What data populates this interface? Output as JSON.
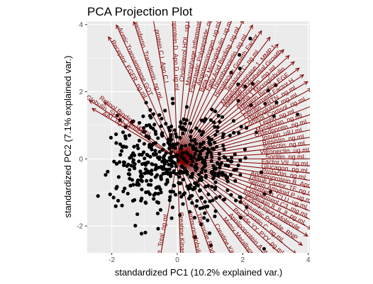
{
  "chart_data": {
    "type": "scatter",
    "title": "PCA Projection Plot",
    "xlabel": "standardized PC1 (10.2% explained var.)",
    "ylabel": "standardized PC2 (7.1% explained var.)",
    "xlim": [
      -2.75,
      4.05
    ],
    "ylim": [
      -2.8,
      4.1
    ],
    "xticks": [
      -2,
      0,
      2,
      4
    ],
    "yticks": [
      -2,
      0,
      2,
      4
    ],
    "grid": true,
    "colors": {
      "panel": "#ebebeb",
      "grid": "#ffffff",
      "points": "#000000",
      "vectors": "#7f0000"
    },
    "point_seed": 7,
    "point_clusters": [
      {
        "cx": -0.55,
        "cy": -0.1,
        "sx": 0.75,
        "sy": 0.75,
        "n": 340
      },
      {
        "cx": 0.95,
        "cy": -0.15,
        "sx": 0.55,
        "sy": 0.65,
        "n": 170
      },
      {
        "cx": 2.2,
        "cy": 1.6,
        "sx": 0.8,
        "sy": 1.1,
        "n": 28
      },
      {
        "cx": 1.0,
        "cy": -1.7,
        "sx": 0.9,
        "sy": 0.5,
        "n": 22
      }
    ],
    "vectors": [
      {
        "label": "Globulin..SHBG..nmol.L",
        "angle": 147,
        "length": 3.2
      },
      {
        "label": "Retinol.Binding..ug.mL",
        "angle": 143,
        "length": 2.8
      },
      {
        "label": "AAT..ug.mL",
        "angle": 150,
        "length": 3.0
      },
      {
        "label": "Receptor..EGFR..ng.mL",
        "angle": 120,
        "length": 4.2
      },
      {
        "label": "Acetic.Transaminase.GOT",
        "angle": 115,
        "length": 4.4
      },
      {
        "label": "Transferrin..Transferrin..ng.mL",
        "angle": 108,
        "length": 4.3
      },
      {
        "label": "protein.C.I..Apo.C.I",
        "angle": 100,
        "length": 4.3
      },
      {
        "label": "Apolipoprotein.D..Apo.D..ug.mL",
        "angle": 92,
        "length": 4.6
      },
      {
        "label": "Cholesterol.HDL..ug.mL",
        "angle": 85,
        "length": 4.6
      },
      {
        "label": "Macrophage.Inflammatory",
        "angle": 80,
        "length": 4.6
      },
      {
        "label": "Pancreatic.Polypeptide..ng.mL",
        "angle": 76,
        "length": 4.6
      },
      {
        "label": "Angiotensinogen..ug.mL",
        "angle": 72,
        "length": 4.6
      },
      {
        "label": "Beta.2.Microglobulin..ug.mL",
        "angle": 68,
        "length": 4.6
      },
      {
        "label": "Fatty.Acid.Binding..ng.mL",
        "angle": 64,
        "length": 4.6
      },
      {
        "label": "Thrombopoietin..ng.mL",
        "angle": 60,
        "length": 4.6
      },
      {
        "label": "Hepatocyte.Growth.Factor",
        "angle": 56,
        "length": 4.6
      },
      {
        "label": "Tenascin.C..ng.mL",
        "angle": 52,
        "length": 4.6
      },
      {
        "label": "Metalloproteinase.1..MMP.1",
        "angle": 48,
        "length": 4.6
      },
      {
        "label": "Vascular.Endothelial.Growth",
        "angle": 45,
        "length": 4.6
      },
      {
        "label": "Fibrinogen..mg.mL",
        "angle": 42,
        "length": 4.6
      },
      {
        "label": "Alpha.1.Microglobulin",
        "angle": 39,
        "length": 4.6
      },
      {
        "label": "Heparin.Binding.EGF",
        "angle": 36,
        "length": 4.6
      },
      {
        "label": "Complement.Factor.H",
        "angle": 33,
        "length": 4.6
      },
      {
        "label": "Ferritin..FRTN..ng.mL",
        "angle": 30,
        "length": 4.6
      },
      {
        "label": "Haptoglobin..mg.mL",
        "angle": 27,
        "length": 4.6
      },
      {
        "label": "Cortisol..Cortisol..ng.mL",
        "angle": 24,
        "length": 4.6
      },
      {
        "label": "Leptin..ng.mL",
        "angle": 21,
        "length": 4.6
      },
      {
        "label": "Myoglobin..ng.mL",
        "angle": 18,
        "length": 4.6
      },
      {
        "label": "Osteopontin..ng.mL",
        "angle": 15,
        "length": 4.6
      },
      {
        "label": "Insulin..uIU.mL",
        "angle": 12,
        "length": 4.6
      },
      {
        "label": "Resistin..ng.mL",
        "angle": 9,
        "length": 4.6
      },
      {
        "label": "Selectin..ng.mL",
        "angle": 6,
        "length": 4.6
      },
      {
        "label": "Vitronectin..ug.mL",
        "angle": 3,
        "length": 4.6
      },
      {
        "label": "Sortilin..ng.mL",
        "angle": 0,
        "length": 4.6
      },
      {
        "label": "Factor.VII..ng.mL",
        "angle": -3,
        "length": 4.6
      },
      {
        "label": "Glucagon..pg.mL",
        "angle": -6,
        "length": 4.6
      },
      {
        "label": "Prolactin..ng.mL",
        "angle": -9,
        "length": 4.6
      },
      {
        "label": "Apolipoprotein.B..Apo.B",
        "angle": -12,
        "length": 4.6
      },
      {
        "label": "Tissue.Factor..TF..ng.mL",
        "angle": -15,
        "length": 4.6
      },
      {
        "label": "Serum.Amyloid.P..ug.mL",
        "angle": -18,
        "length": 4.6
      },
      {
        "label": "Clusterin..CLU..ug.mL",
        "angle": -21,
        "length": 4.6
      },
      {
        "label": "Complement.C3..mg.mL",
        "angle": -24,
        "length": 4.6
      },
      {
        "label": "Interleukin.8..IL.8..pg.mL",
        "angle": -27,
        "length": 4.6
      },
      {
        "label": "Kidney.Injury.Molecule",
        "angle": -30,
        "length": 4.6
      },
      {
        "label": "Natriuretic.Peptide..BNP",
        "angle": -34,
        "length": 4.6
      },
      {
        "label": "Cystatin.C..ng.mL",
        "angle": -38,
        "length": 4.6
      },
      {
        "label": "Peptide.YY..PYY..pg.mL",
        "angle": -42,
        "length": 4.6
      },
      {
        "label": "Apolipoprotein.A..Apo.A",
        "angle": -47,
        "length": 4.6
      },
      {
        "label": "Matrix.Metalloproteinase",
        "angle": -52,
        "length": 4.6
      },
      {
        "label": "Creatine.Kinase..CK.MB",
        "angle": -60,
        "length": 4.6
      },
      {
        "label": "Thyroxine.Binding.Globulin",
        "angle": -70,
        "length": 4.0
      },
      {
        "label": "Immunoglobulin.E..IgE",
        "angle": -78,
        "length": 3.6
      },
      {
        "label": "Creatine.Kinase..CK",
        "angle": -88,
        "length": 3.4
      },
      {
        "label": "Hormone..Total..ng.mL",
        "angle": -100,
        "length": 3.6
      }
    ]
  }
}
